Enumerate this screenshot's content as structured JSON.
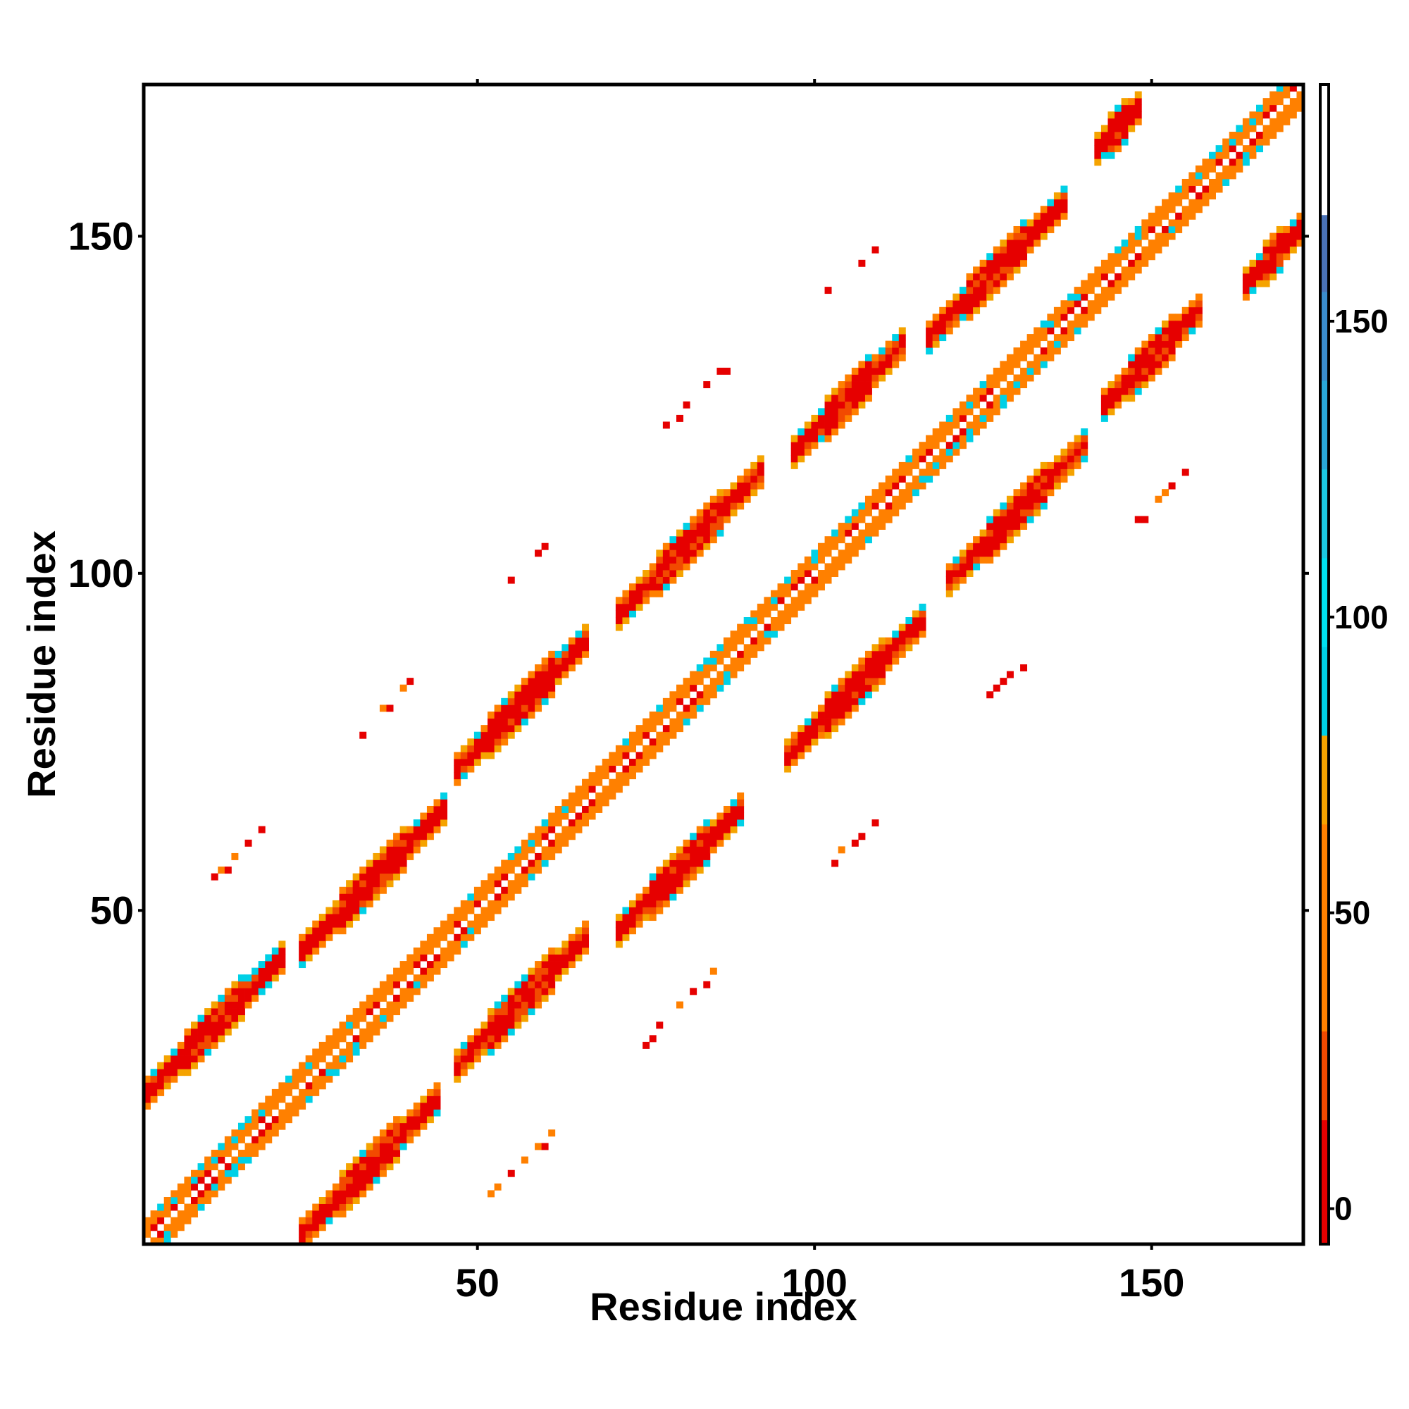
{
  "chart_data": {
    "type": "heatmap",
    "title": "",
    "xlabel": "Residue index",
    "ylabel": "Residue index",
    "xlim": [
      1,
      172
    ],
    "ylim": [
      1,
      172
    ],
    "x_ticks": [
      50,
      100,
      150
    ],
    "y_ticks": [
      50,
      100,
      150
    ],
    "colorbar": {
      "ticks": [
        0,
        50,
        100,
        150
      ],
      "range": [
        -6,
        190
      ],
      "bands": [
        {
          "from": -6,
          "to": 15,
          "color": "#e60000"
        },
        {
          "from": 15,
          "to": 30,
          "color": "#f24a00"
        },
        {
          "from": 30,
          "to": 65,
          "color": "#ff8000"
        },
        {
          "from": 65,
          "to": 80,
          "color": "#f5a300"
        },
        {
          "from": 80,
          "to": 95,
          "color": "#00d0e6"
        },
        {
          "from": 95,
          "to": 110,
          "color": "#00e0f0"
        },
        {
          "from": 110,
          "to": 125,
          "color": "#1cc8e0"
        },
        {
          "from": 125,
          "to": 140,
          "color": "#2aa8d8"
        },
        {
          "from": 140,
          "to": 155,
          "color": "#3a8ccc"
        },
        {
          "from": 155,
          "to": 168,
          "color": "#4a72b6"
        },
        {
          "from": 168,
          "to": 190,
          "color": "#ffffff"
        }
      ]
    },
    "grid": false,
    "legend": "colorbar-right",
    "bands": [
      {
        "kind": "diagonal",
        "offset": 0,
        "x_start": 1,
        "x_end": 172,
        "half_width": 3,
        "value": 40,
        "alt_value": 55
      },
      {
        "kind": "parallel",
        "offset": 22,
        "x_start": 1,
        "x_end": 21,
        "half_width": 2,
        "value": 10
      },
      {
        "kind": "parallel",
        "offset": 20,
        "x_start": 24,
        "x_end": 45,
        "half_width": 2,
        "value": 10
      },
      {
        "kind": "parallel",
        "offset": 24,
        "x_start": 47,
        "x_end": 66,
        "half_width": 2,
        "value": 10
      },
      {
        "kind": "parallel",
        "offset": 23,
        "x_start": 71,
        "x_end": 92,
        "half_width": 2,
        "value": 10
      },
      {
        "kind": "parallel",
        "offset": 21,
        "x_start": 97,
        "x_end": 113,
        "half_width": 2,
        "value": 10
      },
      {
        "kind": "parallel",
        "offset": 18,
        "x_start": 117,
        "x_end": 137,
        "half_width": 2,
        "value": 10
      },
      {
        "kind": "parallel",
        "offset": 21,
        "x_start": 142,
        "x_end": 148,
        "half_width": 2,
        "value": 10
      },
      {
        "kind": "parallel",
        "offset": -22,
        "x_start": 24,
        "x_end": 44,
        "half_width": 2,
        "value": 10
      },
      {
        "kind": "parallel",
        "offset": -20,
        "x_start": 47,
        "x_end": 66,
        "half_width": 2,
        "value": 10
      },
      {
        "kind": "parallel",
        "offset": -24,
        "x_start": 71,
        "x_end": 89,
        "half_width": 2,
        "value": 10
      },
      {
        "kind": "parallel",
        "offset": -23,
        "x_start": 96,
        "x_end": 116,
        "half_width": 2,
        "value": 10
      },
      {
        "kind": "parallel",
        "offset": -21,
        "x_start": 120,
        "x_end": 140,
        "half_width": 2,
        "value": 10
      },
      {
        "kind": "parallel",
        "offset": -18,
        "x_start": 143,
        "x_end": 157,
        "half_width": 2,
        "value": 10
      },
      {
        "kind": "parallel",
        "offset": -21,
        "x_start": 164,
        "x_end": 172,
        "half_width": 2,
        "value": 10
      },
      {
        "kind": "sparse",
        "offset": 44,
        "x_start": 8,
        "x_end": 18,
        "value": 5
      },
      {
        "kind": "sparse",
        "offset": 44,
        "x_start": 31,
        "x_end": 41,
        "value": 5
      },
      {
        "kind": "sparse",
        "offset": 45,
        "x_start": 55,
        "x_end": 63,
        "value": 5
      },
      {
        "kind": "sparse",
        "offset": 44,
        "x_start": 78,
        "x_end": 87,
        "value": 5
      },
      {
        "kind": "sparse",
        "offset": 40,
        "x_start": 100,
        "x_end": 110,
        "value": 5
      },
      {
        "kind": "sparse",
        "offset": -44,
        "x_start": 52,
        "x_end": 61,
        "value": 5
      },
      {
        "kind": "sparse",
        "offset": -44,
        "x_start": 75,
        "x_end": 85,
        "value": 5
      },
      {
        "kind": "sparse",
        "offset": -45,
        "x_start": 99,
        "x_end": 109,
        "value": 5
      },
      {
        "kind": "sparse",
        "offset": -44,
        "x_start": 123,
        "x_end": 133,
        "value": 5
      },
      {
        "kind": "sparse",
        "offset": -40,
        "x_start": 145,
        "x_end": 155,
        "value": 5
      }
    ]
  }
}
